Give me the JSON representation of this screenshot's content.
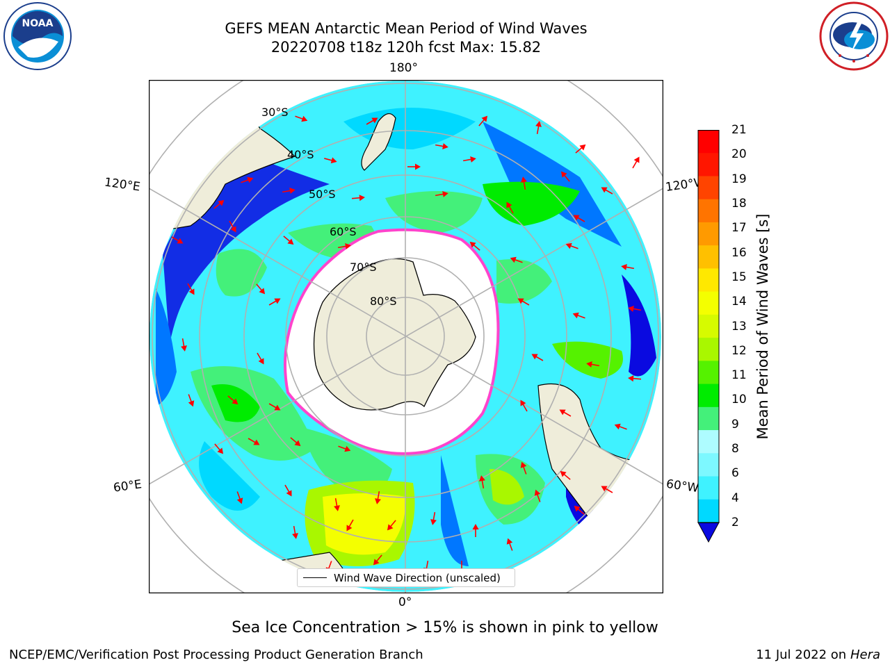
{
  "header": {
    "title_line1": "GEFS MEAN Antarctic Mean Period of Wind Waves",
    "title_line2": "20220708 t18z 120h fcst   Max: 15.82"
  },
  "logos": {
    "left_text": "NOAA",
    "left_icon": "noaa-logo",
    "right_icon": "nws-logo"
  },
  "map": {
    "projection": "south-polar-stereographic",
    "longitude_labels": {
      "top": "180°",
      "bottom": "0°",
      "upper_left": "120°E",
      "upper_right": "120°W",
      "lower_left": "60°E",
      "lower_right": "60°W"
    },
    "latitude_labels": [
      "30°S",
      "40°S",
      "50°S",
      "60°S",
      "70°S",
      "80°S"
    ],
    "legend_entry": "Wind Wave Direction (unscaled)",
    "land_color": "#efedda",
    "ice_edge_color": "#ff44cc",
    "arrow_color": "#ff0000"
  },
  "colorbar": {
    "label": "Mean Period of Wind Waves [s]",
    "ticks": [
      "2",
      "4",
      "6",
      "8",
      "9",
      "10",
      "11",
      "12",
      "13",
      "14",
      "15",
      "16",
      "17",
      "18",
      "19",
      "20",
      "21"
    ],
    "colors": [
      "#0077ff",
      "#00d9ff",
      "#3ff2ff",
      "#7df8ff",
      "#aefcff",
      "#44f07a",
      "#00ec00",
      "#55f200",
      "#a9f700",
      "#d6fb00",
      "#f4ff00",
      "#ffe800",
      "#ffc000",
      "#ff9a00",
      "#ff7400",
      "#ff4400",
      "#ff1600",
      "#ff0000"
    ],
    "under_color": "#0a0ae0",
    "extend": "min"
  },
  "notes": {
    "sea_ice": "Sea Ice Concentration > 15% is shown in pink to yellow"
  },
  "footer": {
    "left": "NCEP/EMC/Verification Post Processing Product Generation Branch",
    "date": "11 Jul 2022 on ",
    "machine": "Hera"
  }
}
